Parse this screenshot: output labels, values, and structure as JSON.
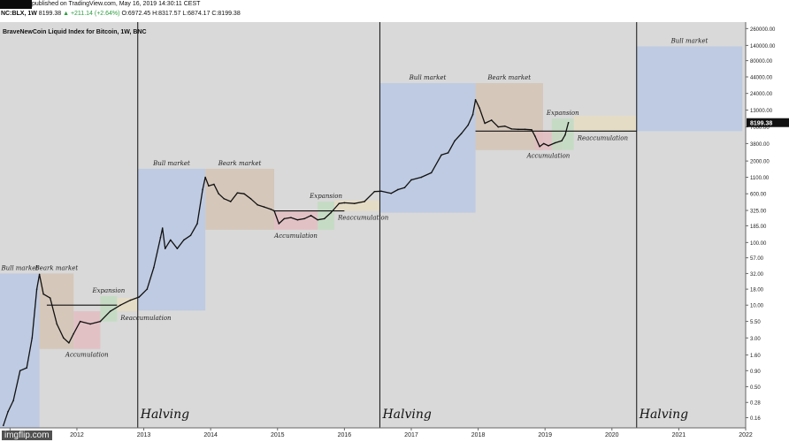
{
  "header": {
    "published": "published on TradingView.com, May 16, 2019 14:30:11 CEST",
    "symbol": "NC:BLX, 1W",
    "last": "8199.38",
    "change": "+211.14 (+2.64%)",
    "ohlc": "O:6972.45 H:8317.57 L:6874.17 C:8199.38"
  },
  "chart_data": {
    "type": "line",
    "title": "BraveNewCoin Liquid Index for Bitcoin, 1W, BNC",
    "yscale": "log",
    "xlim": [
      2010.85,
      2022.0
    ],
    "ylim": [
      0.11,
      330000
    ],
    "y_ticks": [
      "260000.00",
      "140000.00",
      "80000.00",
      "44000.00",
      "24000.00",
      "13000.00",
      "7000.00",
      "3800.00",
      "2000.00",
      "1100.00",
      "600.00",
      "325.00",
      "185.00",
      "100.00",
      "57.00",
      "32.00",
      "18.00",
      "10.00",
      "5.50",
      "3.00",
      "1.60",
      "0.90",
      "0.50",
      "0.28",
      "0.16"
    ],
    "x_ticks": [
      "1",
      "2012",
      "2013",
      "2014",
      "2015",
      "2016",
      "2017",
      "2018",
      "2019",
      "2020",
      "2021",
      "2022"
    ],
    "last_price_label": "8199.38",
    "series": [
      {
        "values": [
          [
            2010.9,
            0.12
          ],
          [
            2010.97,
            0.2
          ],
          [
            2011.05,
            0.3
          ],
          [
            2011.15,
            0.9
          ],
          [
            2011.25,
            1.0
          ],
          [
            2011.33,
            3.0
          ],
          [
            2011.4,
            18
          ],
          [
            2011.44,
            31
          ],
          [
            2011.5,
            15
          ],
          [
            2011.6,
            13
          ],
          [
            2011.7,
            5
          ],
          [
            2011.8,
            3
          ],
          [
            2011.88,
            2.5
          ],
          [
            2011.95,
            3.5
          ],
          [
            2012.05,
            5.5
          ],
          [
            2012.2,
            5
          ],
          [
            2012.35,
            5.5
          ],
          [
            2012.5,
            8
          ],
          [
            2012.65,
            10
          ],
          [
            2012.8,
            12
          ],
          [
            2012.93,
            13.5
          ],
          [
            2013.05,
            18
          ],
          [
            2013.15,
            40
          ],
          [
            2013.25,
            120
          ],
          [
            2013.28,
            170
          ],
          [
            2013.32,
            80
          ],
          [
            2013.4,
            110
          ],
          [
            2013.5,
            80
          ],
          [
            2013.6,
            110
          ],
          [
            2013.7,
            130
          ],
          [
            2013.8,
            200
          ],
          [
            2013.88,
            700
          ],
          [
            2013.92,
            1100
          ],
          [
            2013.97,
            800
          ],
          [
            2014.05,
            850
          ],
          [
            2014.12,
            600
          ],
          [
            2014.2,
            500
          ],
          [
            2014.3,
            450
          ],
          [
            2014.4,
            620
          ],
          [
            2014.5,
            600
          ],
          [
            2014.6,
            500
          ],
          [
            2014.7,
            400
          ],
          [
            2014.8,
            370
          ],
          [
            2014.9,
            340
          ],
          [
            2014.95,
            320
          ],
          [
            2015.02,
            200
          ],
          [
            2015.1,
            240
          ],
          [
            2015.2,
            250
          ],
          [
            2015.3,
            230
          ],
          [
            2015.4,
            240
          ],
          [
            2015.5,
            270
          ],
          [
            2015.6,
            230
          ],
          [
            2015.7,
            240
          ],
          [
            2015.8,
            300
          ],
          [
            2015.92,
            420
          ],
          [
            2016.0,
            430
          ],
          [
            2016.15,
            420
          ],
          [
            2016.3,
            450
          ],
          [
            2016.45,
            650
          ],
          [
            2016.55,
            660
          ],
          [
            2016.7,
            610
          ],
          [
            2016.8,
            700
          ],
          [
            2016.9,
            750
          ],
          [
            2017.0,
            1000
          ],
          [
            2017.15,
            1100
          ],
          [
            2017.3,
            1300
          ],
          [
            2017.45,
            2500
          ],
          [
            2017.55,
            2700
          ],
          [
            2017.65,
            4200
          ],
          [
            2017.75,
            5500
          ],
          [
            2017.85,
            7500
          ],
          [
            2017.92,
            11000
          ],
          [
            2017.96,
            19000
          ],
          [
            2018.02,
            14000
          ],
          [
            2018.1,
            8000
          ],
          [
            2018.2,
            9000
          ],
          [
            2018.3,
            7000
          ],
          [
            2018.4,
            7200
          ],
          [
            2018.5,
            6500
          ],
          [
            2018.6,
            6400
          ],
          [
            2018.7,
            6400
          ],
          [
            2018.8,
            6300
          ],
          [
            2018.85,
            5000
          ],
          [
            2018.92,
            3400
          ],
          [
            2018.98,
            3800
          ],
          [
            2019.05,
            3500
          ],
          [
            2019.15,
            3900
          ],
          [
            2019.25,
            4200
          ],
          [
            2019.3,
            5200
          ],
          [
            2019.35,
            8199
          ]
        ]
      }
    ],
    "phase_labels": [
      "Bull market",
      "Beark market",
      "Accumulation",
      "Expansion",
      "Reaccumulation"
    ],
    "halving_label": "Halving",
    "halvings": [
      2012.91,
      2016.53,
      2020.37
    ],
    "zones": [
      {
        "label": "Bull market",
        "color": "#b8c8e3",
        "x0": 2010.85,
        "x1": 2011.44,
        "y0": 0.11,
        "y1": 32
      },
      {
        "label": "Beark market",
        "color": "#d4c3b4",
        "x0": 2011.44,
        "x1": 2011.95,
        "y0": 2.0,
        "y1": 32
      },
      {
        "label": "Accumulation",
        "color": "#e3bcc1",
        "x0": 2011.95,
        "x1": 2012.35,
        "y0": 2.0,
        "y1": 8.0
      },
      {
        "label": "Expansion",
        "color": "#c2dbbf",
        "x0": 2012.35,
        "x1": 2012.6,
        "y0": 5.5,
        "y1": 14
      },
      {
        "label": "Reaccumulation",
        "color": "#e6dcc2",
        "x0": 2012.6,
        "x1": 2012.91,
        "y0": 8,
        "y1": 13
      },
      {
        "label": "Bull market",
        "color": "#b8c8e3",
        "x0": 2012.91,
        "x1": 2013.92,
        "y0": 8.2,
        "y1": 1500
      },
      {
        "label": "Beark market",
        "color": "#d4c3b4",
        "x0": 2013.92,
        "x1": 2014.95,
        "y0": 160,
        "y1": 1500
      },
      {
        "label": "Accumulation",
        "color": "#e3bcc1",
        "x0": 2014.95,
        "x1": 2015.6,
        "y0": 160,
        "y1": 320
      },
      {
        "label": "Expansion",
        "color": "#c2dbbf",
        "x0": 2015.6,
        "x1": 2015.85,
        "y0": 160,
        "y1": 450
      },
      {
        "label": "Reaccumulation",
        "color": "#e6dcc2",
        "x0": 2015.85,
        "x1": 2016.53,
        "y0": 320,
        "y1": 470
      },
      {
        "label": "Bull market",
        "color": "#b8c8e3",
        "x0": 2016.53,
        "x1": 2017.96,
        "y0": 300,
        "y1": 35000
      },
      {
        "label": "Beark market",
        "color": "#d4c3b4",
        "x0": 2017.96,
        "x1": 2018.97,
        "y0": 3000,
        "y1": 35000
      },
      {
        "label": "Accumulation",
        "color": "#e3bcc1",
        "x0": 2018.85,
        "x1": 2019.25,
        "y0": 3000,
        "y1": 6000
      },
      {
        "label": "Expansion",
        "color": "#c2dbbf",
        "x0": 2019.1,
        "x1": 2019.43,
        "y0": 3000,
        "y1": 9500
      },
      {
        "label": "Reaccumulation",
        "color": "#e6dcc2",
        "x0": 2019.43,
        "x1": 2020.37,
        "y0": 6000,
        "y1": 10500
      },
      {
        "label": "Bull market",
        "color": "#b8c8e3",
        "x0": 2020.37,
        "x1": 2021.95,
        "y0": 6000,
        "y1": 135000
      }
    ],
    "resistance_lines": [
      {
        "x0": 2011.55,
        "x1": 2012.6,
        "y": 10
      },
      {
        "x0": 2014.95,
        "x1": 2016.0,
        "y": 320
      },
      {
        "x0": 2017.96,
        "x1": 2020.37,
        "y": 6000
      }
    ],
    "colors": {
      "price": "#111111",
      "last_price_bg": "#111111",
      "plot_bg": "#d9d9d9"
    }
  },
  "watermark": "imgflip.com"
}
